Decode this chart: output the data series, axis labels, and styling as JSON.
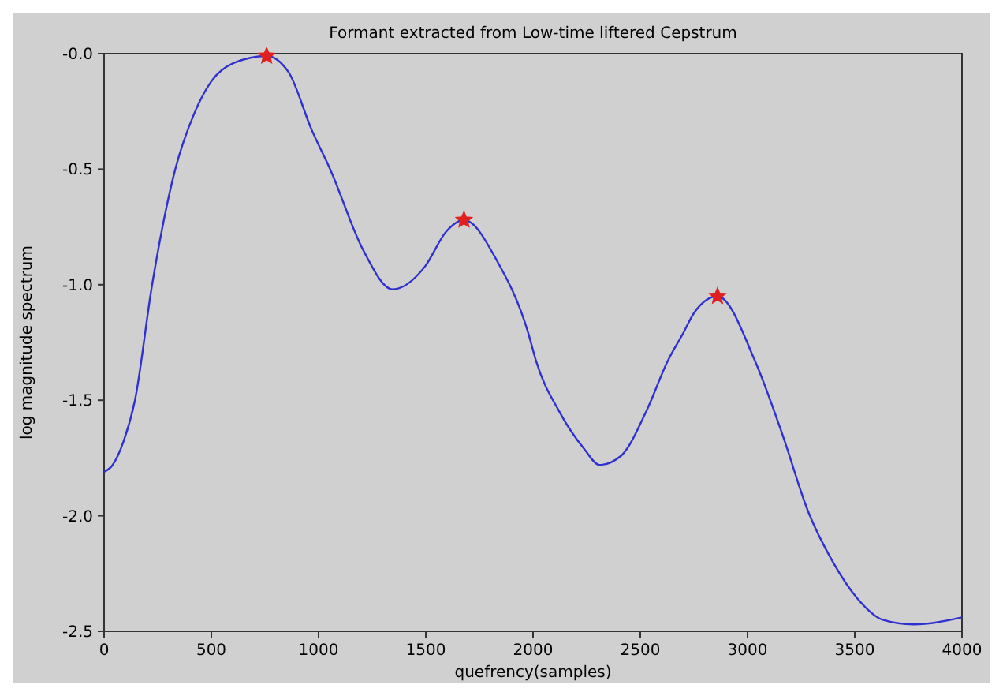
{
  "chart_data": {
    "type": "line",
    "title": "Formant extracted from Low-time liftered Cepstrum",
    "xlabel": "quefrency(samples)",
    "ylabel": "log magnitude spectrum",
    "xlim": [
      0,
      4000
    ],
    "xticks": [
      0,
      500,
      1000,
      1500,
      2000,
      2500,
      3000,
      3500,
      4000
    ],
    "ylim": [
      -2.5,
      0
    ],
    "yticks": [
      {
        "value": 0,
        "label": "-0.0"
      },
      -0.5,
      {
        "value": -1,
        "label": "-1.0"
      },
      -1.5,
      {
        "value": -2,
        "label": "-2.0"
      },
      -2.5
    ],
    "grid": false,
    "series": [
      {
        "color": "#3030d0",
        "marker": "none",
        "x": [
          0,
          40,
          90,
          144,
          224,
          332,
          420,
          500,
          606,
          758,
          860,
          968,
          1054,
          1208,
          1345,
          1497,
          1595,
          1678,
          1834,
          1978,
          2014,
          2123,
          2238,
          2310,
          2411,
          2527,
          2628,
          2700,
          2752,
          2860,
          3035,
          3167,
          3282,
          3398,
          3514,
          3630,
          3774,
          4000
        ],
        "values": [
          -1.81,
          -1.78,
          -1.68,
          -1.5,
          -1.0,
          -0.5,
          -0.26,
          -0.12,
          -0.04,
          -0.01,
          -0.08,
          -0.33,
          -0.5,
          -0.85,
          -1.02,
          -0.92,
          -0.77,
          -0.72,
          -0.9,
          -1.21,
          -1.33,
          -1.55,
          -1.71,
          -1.78,
          -1.74,
          -1.55,
          -1.33,
          -1.21,
          -1.12,
          -1.05,
          -1.33,
          -1.66,
          -1.98,
          -2.2,
          -2.36,
          -2.45,
          -2.47,
          -2.44
        ]
      },
      {
        "type": "scatter",
        "color": "#e02020",
        "marker": "star",
        "x": [
          758,
          1678,
          2860
        ],
        "values": [
          -0.01,
          -0.72,
          -1.05
        ]
      }
    ]
  }
}
